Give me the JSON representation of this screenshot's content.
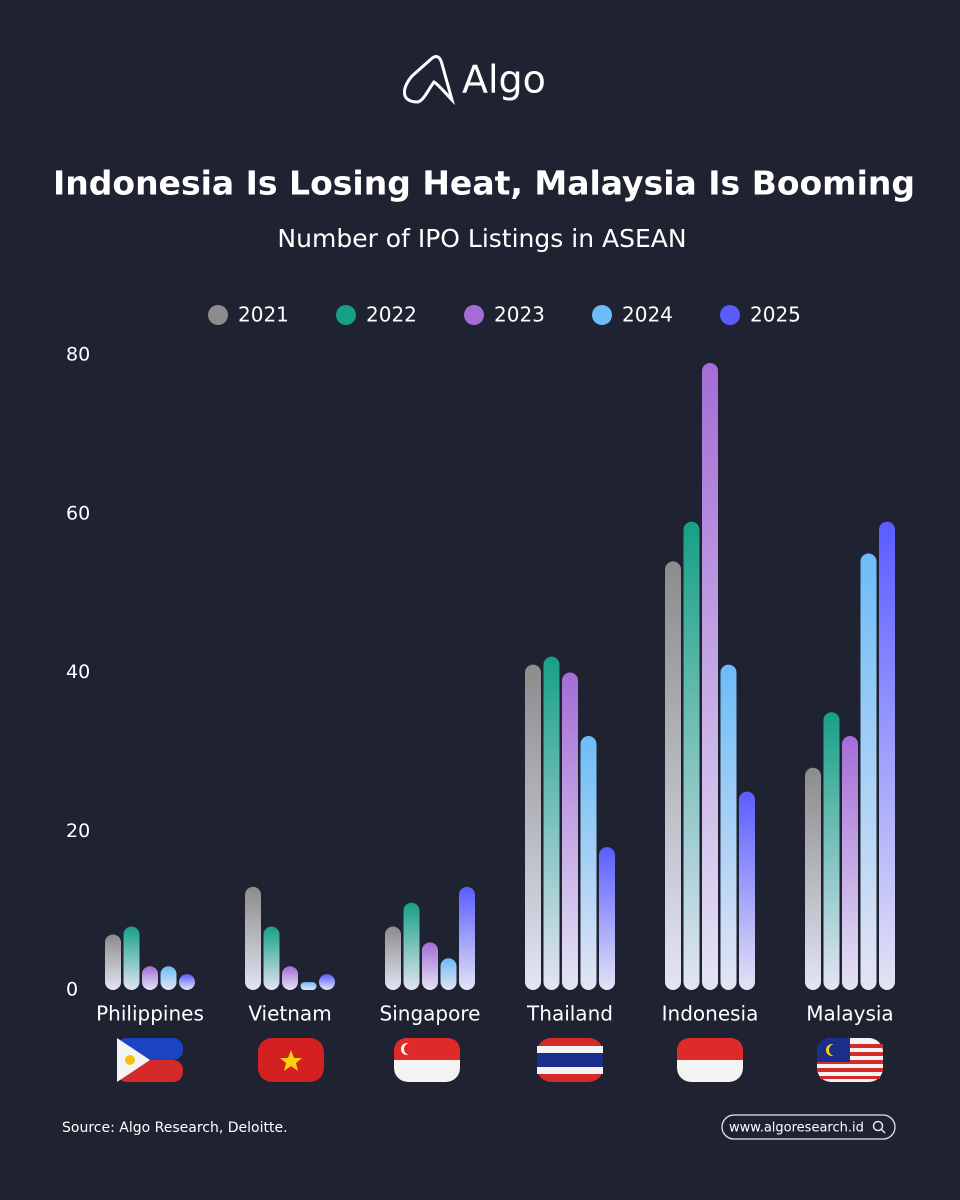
{
  "brand": "Algo",
  "source": "Source: Algo Research, Deloitte.",
  "website": "www.algoresearch.id",
  "chart_data": {
    "type": "bar",
    "title": "Indonesia Is Losing Heat, Malaysia Is Booming",
    "subtitle": "Number of IPO Listings in ASEAN",
    "categories": [
      "Philippines",
      "Vietnam",
      "Singapore",
      "Thailand",
      "Indonesia",
      "Malaysia"
    ],
    "series": [
      {
        "name": "2021",
        "color": "#8c8c8c",
        "values": [
          7,
          13,
          8,
          41,
          54,
          28
        ]
      },
      {
        "name": "2022",
        "color": "#16a085",
        "values": [
          8,
          8,
          11,
          42,
          59,
          35
        ]
      },
      {
        "name": "2023",
        "color": "#a56cd6",
        "values": [
          3,
          3,
          6,
          40,
          79,
          32
        ]
      },
      {
        "name": "2024",
        "color": "#6cbcf7",
        "values": [
          3,
          1,
          4,
          32,
          41,
          55
        ]
      },
      {
        "name": "2025",
        "color": "#5a5cff",
        "values": [
          2,
          2,
          13,
          18,
          25,
          59
        ]
      }
    ],
    "ylim": [
      0,
      80
    ],
    "yticks": [
      0,
      20,
      40,
      60,
      80
    ],
    "grid": false
  }
}
